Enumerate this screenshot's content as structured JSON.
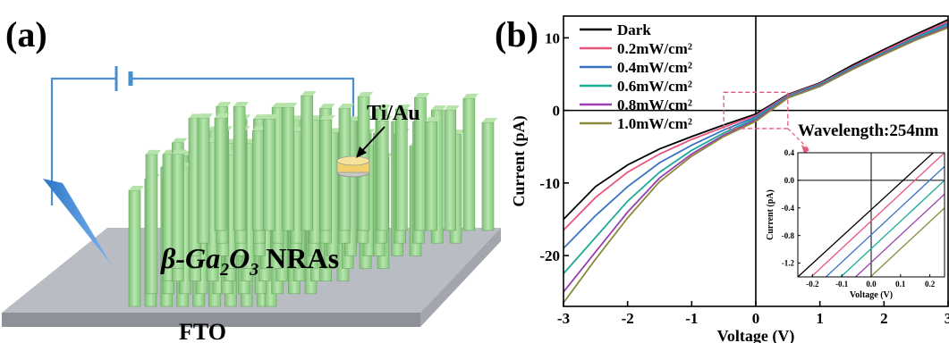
{
  "panel_a": {
    "label": "(a)",
    "electrode_label": "Ti/Au",
    "nanorod_label_prefix": "β-Ga",
    "nanorod_label_sub1": "2",
    "nanorod_label_mid": "O",
    "nanorod_label_sub2": "3",
    "nanorod_label_suffix": " NRAs",
    "substrate_label": "FTO",
    "colors": {
      "wire": "#4a8fd0",
      "rod": "#98d490",
      "substrate": "#b8bcc4",
      "gold": "#f2d06a"
    }
  },
  "panel_b": {
    "label": "(b)",
    "annotation": "Wavelength:254nm"
  },
  "chart_data": [
    {
      "type": "line",
      "title": "",
      "xlabel": "Voltage (V)",
      "ylabel": "Current (pA)",
      "xlim": [
        -3,
        3
      ],
      "ylim": [
        -27,
        13
      ],
      "xticks": [
        -3,
        -2,
        -1,
        0,
        1,
        2,
        3
      ],
      "yticks": [
        -20,
        -10,
        0,
        10
      ],
      "legend_position": "top-left",
      "x": [
        -3,
        -2.5,
        -2,
        -1.5,
        -1,
        -0.5,
        0,
        0.5,
        1,
        1.5,
        2,
        2.5,
        3
      ],
      "series": [
        {
          "name": "Dark",
          "color": "#000000",
          "values": [
            -15,
            -10.5,
            -7.5,
            -5.3,
            -3.6,
            -2.0,
            -0.5,
            2.2,
            3.8,
            6.2,
            8.4,
            10.5,
            12.5
          ]
        },
        {
          "name": "0.2mW/cm²",
          "color": "#e8557a",
          "values": [
            -16.5,
            -12,
            -8.5,
            -6.0,
            -4.0,
            -2.3,
            -0.7,
            2.1,
            3.7,
            6.0,
            8.2,
            10.3,
            12.2
          ]
        },
        {
          "name": "0.4mW/cm²",
          "color": "#3a72c4",
          "values": [
            -19,
            -14.5,
            -10.5,
            -7.2,
            -4.8,
            -2.7,
            -0.9,
            2.0,
            3.6,
            5.9,
            8.0,
            10.1,
            12.0
          ]
        },
        {
          "name": "0.6mW/cm²",
          "color": "#1aaa96",
          "values": [
            -22.5,
            -17.5,
            -12.5,
            -8.5,
            -5.5,
            -3.1,
            -1.1,
            1.9,
            3.5,
            5.8,
            7.9,
            10.0,
            11.8
          ]
        },
        {
          "name": "0.8mW/cm²",
          "color": "#9b3fb0",
          "values": [
            -25,
            -19.5,
            -14,
            -9.3,
            -6.0,
            -3.4,
            -1.3,
            1.8,
            3.4,
            5.7,
            7.8,
            9.8,
            11.6
          ]
        },
        {
          "name": "1.0mW/cm²",
          "color": "#8a8a3a",
          "values": [
            -26.5,
            -20.5,
            -14.8,
            -9.8,
            -6.3,
            -3.6,
            -1.5,
            1.7,
            3.3,
            5.6,
            7.7,
            9.7,
            11.4
          ]
        }
      ]
    },
    {
      "type": "line",
      "title": "",
      "xlabel": "Voltage (V)",
      "ylabel": "Current (pA)",
      "xlim": [
        -0.25,
        0.25
      ],
      "ylim": [
        -1.4,
        0.4
      ],
      "xticks": [
        -0.2,
        -0.1,
        0.0,
        0.1,
        0.2
      ],
      "xtick_labels": [
        "-0.2",
        "-0.1",
        "0.0",
        "0.1",
        "0.2"
      ],
      "yticks": [
        0.4,
        0.0,
        -0.4,
        -0.8,
        -1.2
      ],
      "ytick_labels": [
        "0.4",
        "0.0",
        "-0.4",
        "-0.8",
        "-1.2"
      ],
      "x": [
        -0.25,
        0.25
      ],
      "series": [
        {
          "color": "#000000",
          "values": [
            -1.4,
            0.55
          ]
        },
        {
          "color": "#e8557a",
          "values": [
            -1.58,
            0.4
          ]
        },
        {
          "color": "#3a72c4",
          "values": [
            -1.78,
            0.2
          ]
        },
        {
          "color": "#1aaa96",
          "values": [
            -1.98,
            0.0
          ]
        },
        {
          "color": "#9b3fb0",
          "values": [
            -2.18,
            -0.2
          ]
        },
        {
          "color": "#8a8a3a",
          "values": [
            -2.38,
            -0.4
          ]
        }
      ]
    }
  ]
}
